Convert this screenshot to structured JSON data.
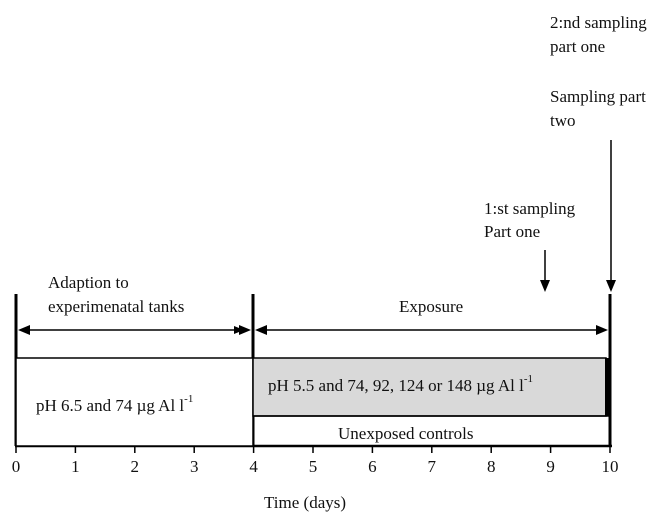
{
  "annotations": {
    "second_sampling_line1": "2:nd sampling",
    "second_sampling_line2": "part one",
    "sampling_two_line1": "Sampling part",
    "sampling_two_line2": "two",
    "first_sampling_line1": "1:st sampling",
    "first_sampling_line2": "Part one"
  },
  "phases": {
    "adaption_line1": "Adaption to",
    "adaption_line2": "experimenatal tanks",
    "exposure": "Exposure"
  },
  "boxes": {
    "adaption_text": "pH 6.5 and 74 µg Al l",
    "adaption_sup": "-1",
    "exposure_text": "pH 5.5 and 74, 92, 124 or 148 µg Al l",
    "exposure_sup": "-1",
    "controls": "Unexposed controls"
  },
  "axis": {
    "label": "Time (days)",
    "ticks": [
      "0",
      "1",
      "2",
      "3",
      "4",
      "5",
      "6",
      "7",
      "8",
      "9",
      "10"
    ]
  },
  "colors": {
    "exposure_fill": "#d9d9d9",
    "line": "#000000"
  }
}
